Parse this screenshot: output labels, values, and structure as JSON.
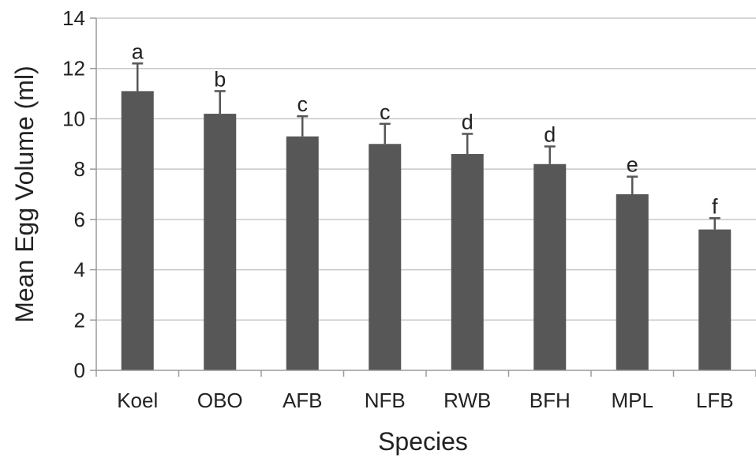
{
  "chart_data": {
    "type": "bar",
    "categories": [
      "Koel",
      "OBO",
      "AFB",
      "NFB",
      "RWB",
      "BFH",
      "MPL",
      "LFB"
    ],
    "values": [
      11.1,
      10.2,
      9.3,
      9.0,
      8.6,
      8.2,
      7.0,
      5.6
    ],
    "error": [
      1.1,
      0.9,
      0.8,
      0.8,
      0.8,
      0.7,
      0.7,
      0.45
    ],
    "labels": [
      "a",
      "b",
      "c",
      "c",
      "d",
      "d",
      "e",
      "f"
    ],
    "xlabel": "Species",
    "ylabel": "Mean Egg Volume (ml)",
    "ylim": [
      0,
      14
    ],
    "yticks": [
      0,
      2,
      4,
      6,
      8,
      10,
      12,
      14
    ],
    "grid": true,
    "colors": {
      "bar": "#575757",
      "grid": "#c8c8c8",
      "axis": "#9a9a9a",
      "error": "#575757"
    }
  }
}
